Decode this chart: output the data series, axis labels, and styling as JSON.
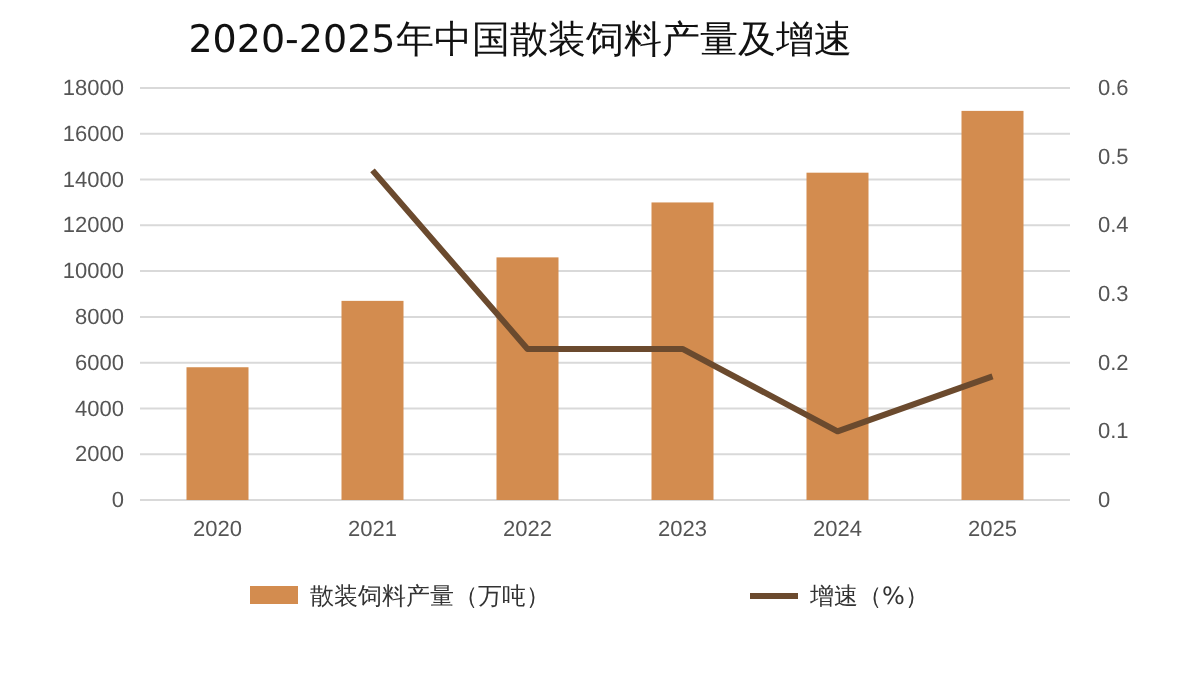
{
  "chart_data": {
    "type": "bar",
    "title": "2020-2025年中国散装饲料产量及增速",
    "categories": [
      "2020",
      "2021",
      "2022",
      "2023",
      "2024",
      "2025"
    ],
    "series": [
      {
        "name": "散装饲料产量（万吨）",
        "color": "#d38c4f",
        "values": [
          5800,
          8700,
          10600,
          13000,
          14300,
          17000
        ]
      },
      {
        "name": "增速（%）",
        "type": "line",
        "axis": "y2",
        "color": "#6b4a2e",
        "values": [
          null,
          0.48,
          0.22,
          0.22,
          0.1,
          0.18
        ]
      }
    ],
    "ylim": [
      0,
      18000
    ],
    "yticks": [
      0,
      2000,
      4000,
      6000,
      8000,
      10000,
      12000,
      14000,
      16000,
      18000
    ],
    "y2lim": [
      0,
      0.6
    ],
    "y2ticks": [
      0,
      0.1,
      0.2,
      0.3,
      0.4,
      0.5,
      0.6
    ],
    "grid": "y",
    "legend": "bottom",
    "marker": "none"
  }
}
